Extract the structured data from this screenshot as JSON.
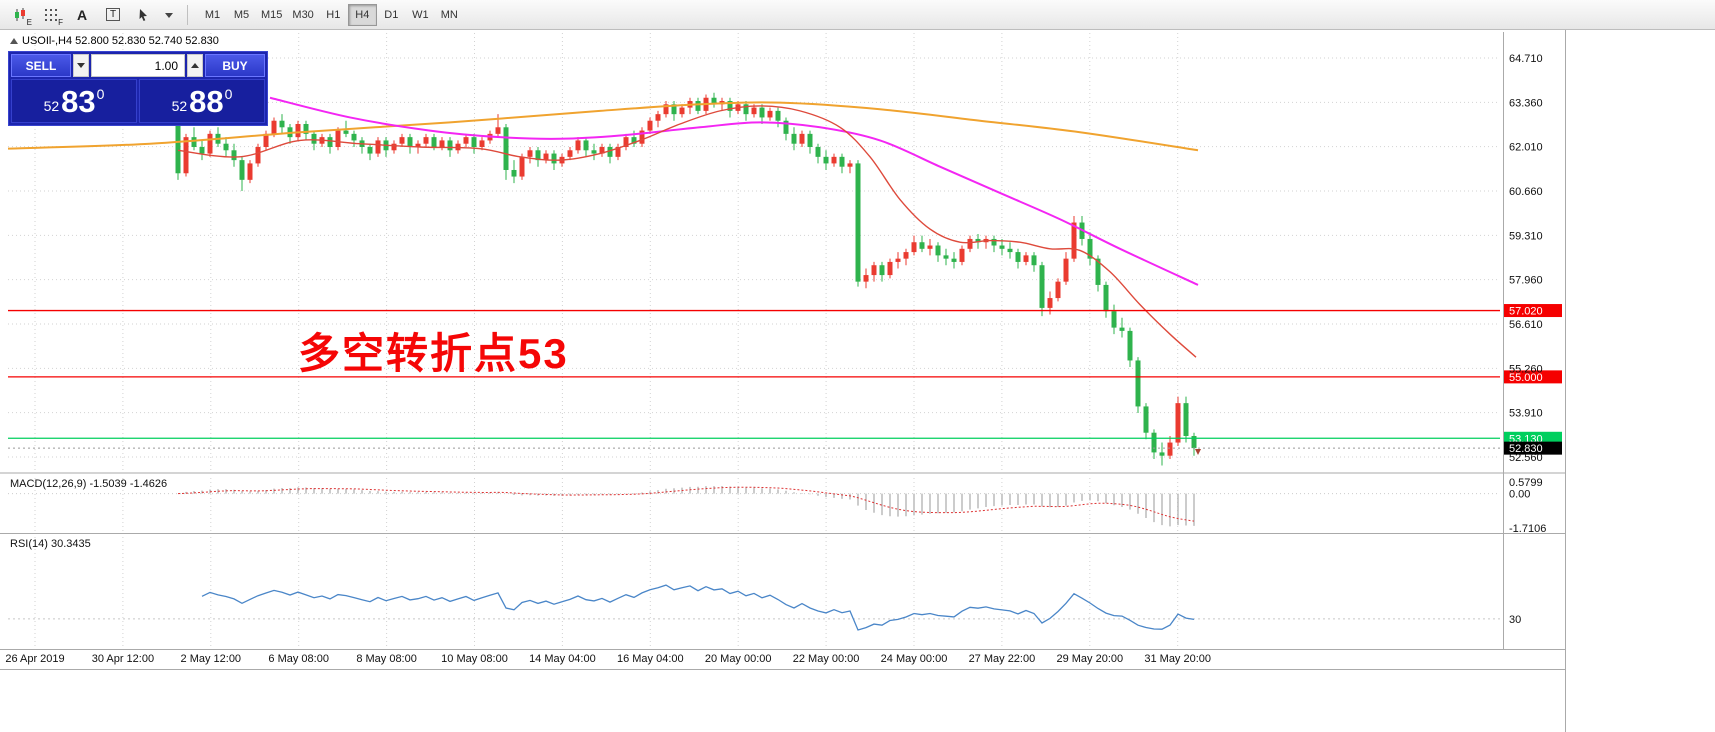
{
  "toolbar": {
    "icons": [
      {
        "name": "candlestick-chart-icon",
        "badge": "E"
      },
      {
        "name": "grid-icon",
        "badge": "F"
      },
      {
        "name": "text-label-icon",
        "badge": "A"
      },
      {
        "name": "text-box-icon",
        "badge": "T"
      },
      {
        "name": "cursor-tool-icon",
        "badge": ""
      },
      {
        "name": "chevron-down-icon",
        "badge": ""
      }
    ],
    "timeframes": [
      "M1",
      "M5",
      "M15",
      "M30",
      "H1",
      "H4",
      "D1",
      "W1",
      "MN"
    ],
    "active_timeframe": "H4"
  },
  "chart_header": {
    "text": "USOIl-,H4 52.800 52.830 52.740 52.830"
  },
  "trade_panel": {
    "sell_label": "SELL",
    "buy_label": "BUY",
    "volume": "1.00",
    "sell_price": {
      "prefix": "52",
      "big": "83",
      "sup": "0"
    },
    "buy_price": {
      "prefix": "52",
      "big": "88",
      "sup": "0"
    }
  },
  "annotation": {
    "text": "多空转折点53",
    "color": "#f50606"
  },
  "indicators": {
    "macd": {
      "label": "MACD(12,26,9) -1.5039 -1.4626",
      "scale": [
        "0.5799",
        "0.00",
        "-1.7106"
      ]
    },
    "rsi": {
      "label": "RSI(14) 30.3435",
      "level_label": "30"
    }
  },
  "price_scale": {
    "gridlines": [
      64.71,
      63.36,
      62.01,
      60.66,
      59.31,
      57.96,
      56.61,
      55.26,
      53.91,
      52.56
    ]
  },
  "hlines": [
    {
      "price": 57.02,
      "label": "57.020",
      "color": "#f50000"
    },
    {
      "price": 55.0,
      "label": "55.000",
      "color": "#f50000"
    },
    {
      "price": 53.13,
      "label": "53.130",
      "color": "#00cf5e"
    }
  ],
  "current_price": {
    "value": 52.83,
    "label": "52.830"
  },
  "x_axis": {
    "labels": [
      "26 Apr 2019",
      "30 Apr 12:00",
      "2 May 12:00",
      "6 May 08:00",
      "8 May 08:00",
      "10 May 08:00",
      "14 May 04:00",
      "16 May 04:00",
      "20 May 00:00",
      "22 May 00:00",
      "24 May 00:00",
      "27 May 22:00",
      "29 May 20:00",
      "31 May 20:00"
    ]
  },
  "theme": {
    "up": "#ea3b30",
    "down": "#2fb34d",
    "grid": "#d2d2d2",
    "ma_orange": "#f0a32f",
    "ma_magenta": "#f326f3",
    "ma_red": "#de4a3c",
    "macd_bar": "#9a9a9a",
    "macd_signal": "#dd3333",
    "rsi_line": "#4a86c8",
    "panel_blue": "#1c25ad"
  },
  "chart_data": {
    "type": "candlestick",
    "symbol": "USOIl-",
    "timeframe": "H4",
    "last_close": 52.83,
    "ylim": [
      52.3,
      64.9
    ],
    "ohlc": [
      [
        62.8,
        62.95,
        61.0,
        61.2
      ],
      [
        61.2,
        62.4,
        61.1,
        62.3
      ],
      [
        62.3,
        62.6,
        61.9,
        62.0
      ],
      [
        62.0,
        62.2,
        61.6,
        61.8
      ],
      [
        61.8,
        62.5,
        61.7,
        62.4
      ],
      [
        62.4,
        62.6,
        62.0,
        62.1
      ],
      [
        62.1,
        62.3,
        61.7,
        61.9
      ],
      [
        61.9,
        62.1,
        61.4,
        61.6
      ],
      [
        61.6,
        61.7,
        60.66,
        61.0
      ],
      [
        61.0,
        61.6,
        60.9,
        61.5
      ],
      [
        61.5,
        62.1,
        61.4,
        62.0
      ],
      [
        62.0,
        62.5,
        61.9,
        62.4
      ],
      [
        62.4,
        62.9,
        62.3,
        62.8
      ],
      [
        62.8,
        63.0,
        62.4,
        62.6
      ],
      [
        62.6,
        62.7,
        62.1,
        62.3
      ],
      [
        62.3,
        62.8,
        62.2,
        62.7
      ],
      [
        62.7,
        62.8,
        62.2,
        62.4
      ],
      [
        62.4,
        62.5,
        61.9,
        62.1
      ],
      [
        62.1,
        62.4,
        62.0,
        62.3
      ],
      [
        62.3,
        62.4,
        61.8,
        62.0
      ],
      [
        62.0,
        62.6,
        61.9,
        62.5
      ],
      [
        62.5,
        62.8,
        62.3,
        62.4
      ],
      [
        62.4,
        62.5,
        62.0,
        62.2
      ],
      [
        62.2,
        62.3,
        61.8,
        62.0
      ],
      [
        62.0,
        62.1,
        61.6,
        61.8
      ],
      [
        61.8,
        62.3,
        61.7,
        62.2
      ],
      [
        62.2,
        62.3,
        61.7,
        61.9
      ],
      [
        61.9,
        62.2,
        61.8,
        62.1
      ],
      [
        62.1,
        62.4,
        62.0,
        62.3
      ],
      [
        62.3,
        62.4,
        61.8,
        62.0
      ],
      [
        62.0,
        62.2,
        61.8,
        62.1
      ],
      [
        62.1,
        62.4,
        62.0,
        62.3
      ],
      [
        62.3,
        62.4,
        61.9,
        62.0
      ],
      [
        62.0,
        62.3,
        61.9,
        62.2
      ],
      [
        62.2,
        62.3,
        61.7,
        61.9
      ],
      [
        61.9,
        62.2,
        61.8,
        62.1
      ],
      [
        62.1,
        62.4,
        62.0,
        62.3
      ],
      [
        62.3,
        62.4,
        61.8,
        62.0
      ],
      [
        62.0,
        62.3,
        61.9,
        62.2
      ],
      [
        62.2,
        62.5,
        62.1,
        62.4
      ],
      [
        62.4,
        63.0,
        62.3,
        62.6
      ],
      [
        62.6,
        62.7,
        61.0,
        61.3
      ],
      [
        61.3,
        61.6,
        60.9,
        61.1
      ],
      [
        61.1,
        61.8,
        61.0,
        61.7
      ],
      [
        61.7,
        62.0,
        61.5,
        61.9
      ],
      [
        61.9,
        62.0,
        61.4,
        61.6
      ],
      [
        61.6,
        61.9,
        61.5,
        61.8
      ],
      [
        61.8,
        61.9,
        61.3,
        61.5
      ],
      [
        61.5,
        61.8,
        61.4,
        61.7
      ],
      [
        61.7,
        62.0,
        61.6,
        61.9
      ],
      [
        61.9,
        62.3,
        61.8,
        62.2
      ],
      [
        62.2,
        62.3,
        61.7,
        61.9
      ],
      [
        61.9,
        62.1,
        61.6,
        61.8
      ],
      [
        61.8,
        62.1,
        61.7,
        62.0
      ],
      [
        62.0,
        62.1,
        61.5,
        61.7
      ],
      [
        61.7,
        62.1,
        61.6,
        62.0
      ],
      [
        62.0,
        62.4,
        61.9,
        62.3
      ],
      [
        62.3,
        62.5,
        62.0,
        62.1
      ],
      [
        62.1,
        62.6,
        62.0,
        62.5
      ],
      [
        62.5,
        62.9,
        62.4,
        62.8
      ],
      [
        62.8,
        63.1,
        62.6,
        63.0
      ],
      [
        63.0,
        63.4,
        62.9,
        63.3
      ],
      [
        63.3,
        63.4,
        62.8,
        63.0
      ],
      [
        63.0,
        63.3,
        62.9,
        63.2
      ],
      [
        63.2,
        63.5,
        63.0,
        63.4
      ],
      [
        63.4,
        63.5,
        63.0,
        63.1
      ],
      [
        63.1,
        63.6,
        63.0,
        63.5
      ],
      [
        63.5,
        63.65,
        63.2,
        63.3
      ],
      [
        63.3,
        63.5,
        63.1,
        63.4
      ],
      [
        63.4,
        63.5,
        62.9,
        63.1
      ],
      [
        63.1,
        63.4,
        63.0,
        63.3
      ],
      [
        63.3,
        63.4,
        62.8,
        63.0
      ],
      [
        63.0,
        63.3,
        62.9,
        63.2
      ],
      [
        63.2,
        63.3,
        62.7,
        62.9
      ],
      [
        62.9,
        63.2,
        62.8,
        63.1
      ],
      [
        63.1,
        63.2,
        62.6,
        62.8
      ],
      [
        62.8,
        62.9,
        62.2,
        62.4
      ],
      [
        62.4,
        62.6,
        61.9,
        62.1
      ],
      [
        62.1,
        62.5,
        62.0,
        62.4
      ],
      [
        62.4,
        62.5,
        61.8,
        62.0
      ],
      [
        62.0,
        62.1,
        61.5,
        61.7
      ],
      [
        61.7,
        61.9,
        61.3,
        61.5
      ],
      [
        61.5,
        61.8,
        61.4,
        61.7
      ],
      [
        61.7,
        61.8,
        61.2,
        61.4
      ],
      [
        61.4,
        61.6,
        61.2,
        61.5
      ],
      [
        61.5,
        61.6,
        57.75,
        57.9
      ],
      [
        57.9,
        58.3,
        57.7,
        58.1
      ],
      [
        58.1,
        58.5,
        57.9,
        58.4
      ],
      [
        58.4,
        58.5,
        57.9,
        58.1
      ],
      [
        58.1,
        58.6,
        58.0,
        58.5
      ],
      [
        58.5,
        58.8,
        58.3,
        58.6
      ],
      [
        58.6,
        58.9,
        58.4,
        58.8
      ],
      [
        58.8,
        59.3,
        58.7,
        59.1
      ],
      [
        59.1,
        59.3,
        58.8,
        58.9
      ],
      [
        58.9,
        59.2,
        58.7,
        59.0
      ],
      [
        59.0,
        59.1,
        58.5,
        58.7
      ],
      [
        58.7,
        58.9,
        58.4,
        58.6
      ],
      [
        58.6,
        58.8,
        58.3,
        58.5
      ],
      [
        58.5,
        59.0,
        58.4,
        58.9
      ],
      [
        58.9,
        59.3,
        58.8,
        59.2
      ],
      [
        59.2,
        59.35,
        58.9,
        59.1
      ],
      [
        59.1,
        59.3,
        58.9,
        59.2
      ],
      [
        59.2,
        59.3,
        58.8,
        59.0
      ],
      [
        59.0,
        59.2,
        58.7,
        58.9
      ],
      [
        58.9,
        59.1,
        58.6,
        58.8
      ],
      [
        58.8,
        58.9,
        58.3,
        58.5
      ],
      [
        58.5,
        58.8,
        58.4,
        58.7
      ],
      [
        58.7,
        58.8,
        58.2,
        58.4
      ],
      [
        58.4,
        58.5,
        56.85,
        57.1
      ],
      [
        57.1,
        57.6,
        56.9,
        57.4
      ],
      [
        57.4,
        58.0,
        57.3,
        57.9
      ],
      [
        57.9,
        58.8,
        57.8,
        58.6
      ],
      [
        58.6,
        59.9,
        58.5,
        59.7
      ],
      [
        59.7,
        59.9,
        59.0,
        59.2
      ],
      [
        59.2,
        59.4,
        58.4,
        58.6
      ],
      [
        58.6,
        58.7,
        57.6,
        57.8
      ],
      [
        57.8,
        57.9,
        56.8,
        57.0
      ],
      [
        57.0,
        57.2,
        56.3,
        56.5
      ],
      [
        56.5,
        56.8,
        56.2,
        56.4
      ],
      [
        56.4,
        56.5,
        55.3,
        55.5
      ],
      [
        55.5,
        55.6,
        53.9,
        54.1
      ],
      [
        54.1,
        54.2,
        53.1,
        53.3
      ],
      [
        53.3,
        53.4,
        52.5,
        52.7
      ],
      [
        52.7,
        53.0,
        52.3,
        52.6
      ],
      [
        52.6,
        53.2,
        52.5,
        53.0
      ],
      [
        53.0,
        54.4,
        52.9,
        54.2
      ],
      [
        54.2,
        54.4,
        53.0,
        53.2
      ],
      [
        53.2,
        53.3,
        52.6,
        52.83
      ]
    ],
    "ma_orange": [
      [
        8,
        61.95
      ],
      [
        150,
        62.1
      ],
      [
        300,
        62.45
      ],
      [
        450,
        62.75
      ],
      [
        600,
        63.1
      ],
      [
        700,
        63.3
      ],
      [
        780,
        63.35
      ],
      [
        880,
        63.15
      ],
      [
        980,
        62.8
      ],
      [
        1080,
        62.45
      ],
      [
        1198,
        61.9
      ]
    ],
    "ma_magenta": [
      [
        270,
        63.5
      ],
      [
        350,
        62.9
      ],
      [
        430,
        62.5
      ],
      [
        500,
        62.3
      ],
      [
        560,
        62.25
      ],
      [
        620,
        62.35
      ],
      [
        700,
        62.6
      ],
      [
        760,
        62.75
      ],
      [
        820,
        62.6
      ],
      [
        880,
        62.2
      ],
      [
        940,
        61.4
      ],
      [
        1000,
        60.6
      ],
      [
        1060,
        59.8
      ],
      [
        1120,
        58.9
      ],
      [
        1198,
        57.8
      ]
    ],
    "ma_red": [
      [
        178,
        61.9
      ],
      [
        240,
        61.7
      ],
      [
        300,
        62.2
      ],
      [
        360,
        62.1
      ],
      [
        420,
        62.0
      ],
      [
        480,
        61.95
      ],
      [
        520,
        61.7
      ],
      [
        560,
        61.6
      ],
      [
        600,
        61.8
      ],
      [
        640,
        62.2
      ],
      [
        680,
        62.7
      ],
      [
        720,
        63.1
      ],
      [
        760,
        63.25
      ],
      [
        800,
        63.1
      ],
      [
        840,
        62.6
      ],
      [
        870,
        61.7
      ],
      [
        900,
        60.4
      ],
      [
        930,
        59.5
      ],
      [
        960,
        59.1
      ],
      [
        990,
        59.15
      ],
      [
        1020,
        59.1
      ],
      [
        1050,
        58.9
      ],
      [
        1080,
        58.85
      ],
      [
        1110,
        58.2
      ],
      [
        1140,
        57.2
      ],
      [
        1170,
        56.3
      ],
      [
        1196,
        55.6
      ]
    ]
  }
}
